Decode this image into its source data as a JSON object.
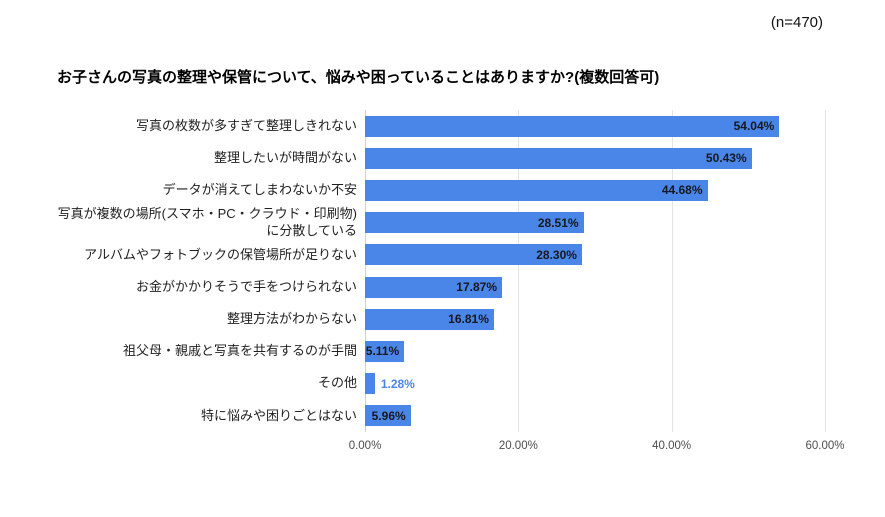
{
  "n_label": "(n=470)",
  "title": "お子さんの写真の整理や保管について、悩みや困っていることはありますか?(複数回答可)",
  "chart_data": {
    "type": "bar",
    "orientation": "horizontal",
    "title": "お子さんの写真の整理や保管について、悩みや困っていることはありますか?(複数回答可)",
    "sample_size_note": "(n=470)",
    "categories": [
      "写真の枚数が多すぎて整理しきれない",
      "整理したいが時間がない",
      "データが消えてしまわないか不安",
      "写真が複数の場所(スマホ・PC・クラウド・印刷物)に分散している",
      "アルバムやフォトブックの保管場所が足りない",
      "お金がかかりそうで手をつけられない",
      "整理方法がわからない",
      "祖父母・親戚と写真を共有するのが手間",
      "その他",
      "特に悩みや困りごとはない"
    ],
    "values": [
      54.04,
      50.43,
      44.68,
      28.51,
      28.3,
      17.87,
      16.81,
      5.11,
      1.28,
      5.96
    ],
    "value_labels": [
      "54.04%",
      "50.43%",
      "44.68%",
      "28.51%",
      "28.30%",
      "17.87%",
      "16.81%",
      "5.11%",
      "1.28%",
      "5.96%"
    ],
    "xlim": [
      0,
      60
    ],
    "x_ticks": [
      "0.00%",
      "20.00%",
      "40.00%",
      "60.00%"
    ],
    "xlabel": "",
    "ylabel": "",
    "grid": true,
    "legend": "none",
    "bar_color": "#4a86e8",
    "inside_label_color": "#17181c",
    "outside_label_color": "#4a86e8"
  }
}
